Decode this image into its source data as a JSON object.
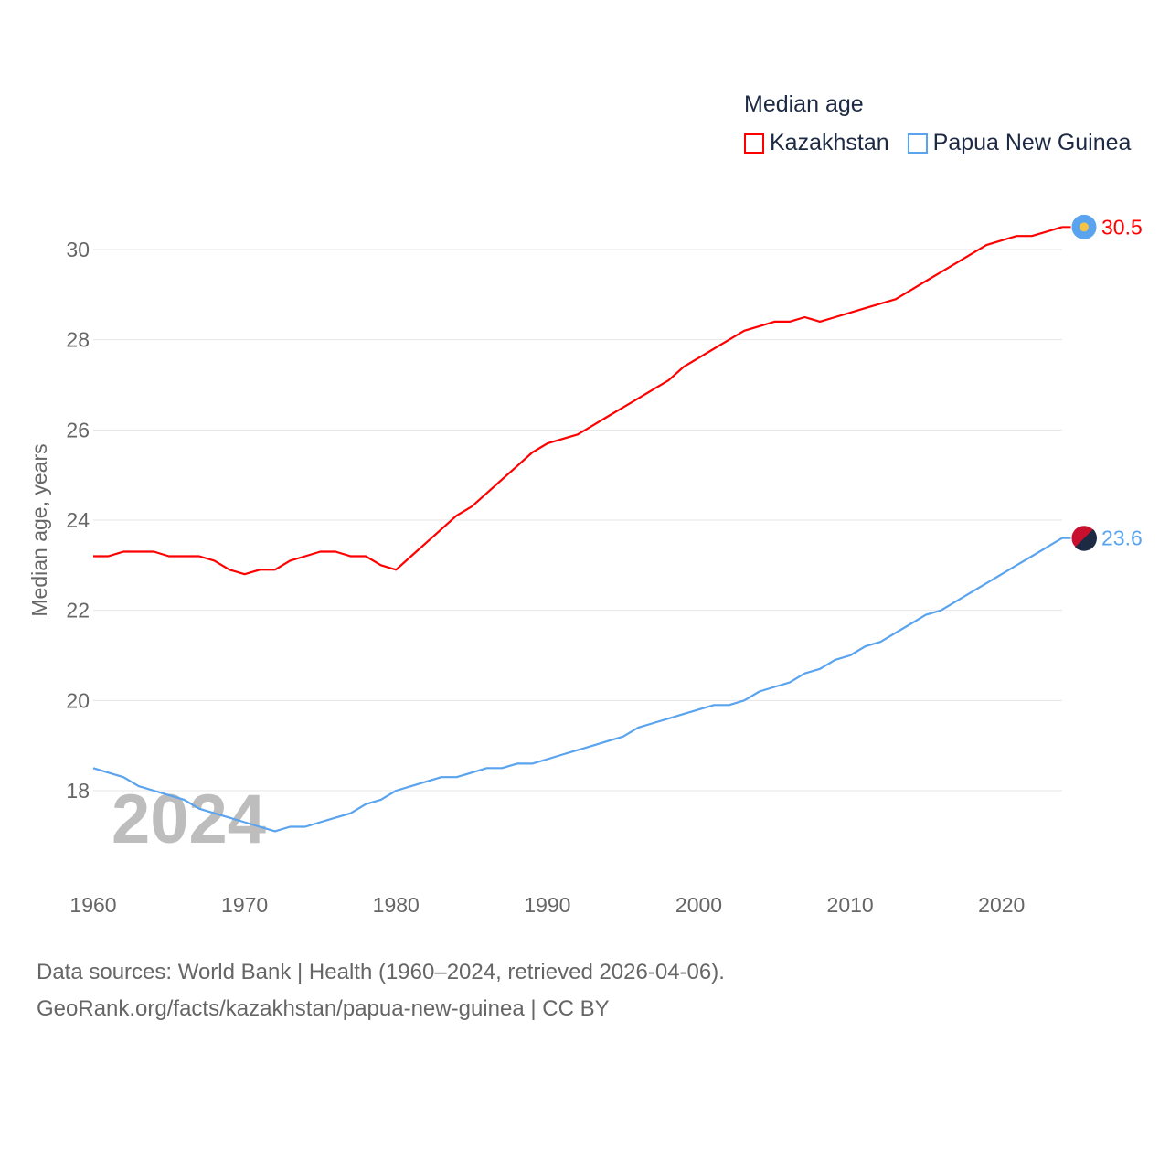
{
  "chart_data": {
    "type": "line",
    "title": "Median age",
    "ylabel": "Median age, years",
    "xlabel": "",
    "xlim": [
      1960,
      2024
    ],
    "ylim": [
      16.2,
      31.5
    ],
    "xticks": [
      1960,
      1970,
      1980,
      1990,
      2000,
      2010,
      2020
    ],
    "yticks": [
      18,
      20,
      22,
      24,
      26,
      28,
      30
    ],
    "grid": true,
    "legend_position": "top-right",
    "watermark_year": "2024",
    "x": [
      1960,
      1961,
      1962,
      1963,
      1964,
      1965,
      1966,
      1967,
      1968,
      1969,
      1970,
      1971,
      1972,
      1973,
      1974,
      1975,
      1976,
      1977,
      1978,
      1979,
      1980,
      1981,
      1982,
      1983,
      1984,
      1985,
      1986,
      1987,
      1988,
      1989,
      1990,
      1991,
      1992,
      1993,
      1994,
      1995,
      1996,
      1997,
      1998,
      1999,
      2000,
      2001,
      2002,
      2003,
      2004,
      2005,
      2006,
      2007,
      2008,
      2009,
      2010,
      2011,
      2012,
      2013,
      2014,
      2015,
      2016,
      2017,
      2018,
      2019,
      2020,
      2021,
      2022,
      2023,
      2024
    ],
    "series": [
      {
        "name": "Kazakhstan",
        "color": "#ff0000",
        "end_label": "30.5",
        "values": [
          23.2,
          23.2,
          23.3,
          23.3,
          23.3,
          23.2,
          23.2,
          23.2,
          23.1,
          22.9,
          22.8,
          22.9,
          22.9,
          23.1,
          23.2,
          23.3,
          23.3,
          23.2,
          23.2,
          23.0,
          22.9,
          23.2,
          23.5,
          23.8,
          24.1,
          24.3,
          24.6,
          24.9,
          25.2,
          25.5,
          25.7,
          25.8,
          25.9,
          26.1,
          26.3,
          26.5,
          26.7,
          26.9,
          27.1,
          27.4,
          27.6,
          27.8,
          28.0,
          28.2,
          28.3,
          28.4,
          28.4,
          28.5,
          28.4,
          28.5,
          28.6,
          28.7,
          28.8,
          28.9,
          29.1,
          29.3,
          29.5,
          29.7,
          29.9,
          30.1,
          30.2,
          30.3,
          30.3,
          30.4,
          30.5
        ]
      },
      {
        "name": "Papua New Guinea",
        "color": "#5aa3ee",
        "end_label": "23.6",
        "values": [
          18.5,
          18.4,
          18.3,
          18.1,
          18.0,
          17.9,
          17.8,
          17.6,
          17.5,
          17.4,
          17.3,
          17.2,
          17.1,
          17.2,
          17.2,
          17.3,
          17.4,
          17.5,
          17.7,
          17.8,
          18.0,
          18.1,
          18.2,
          18.3,
          18.3,
          18.4,
          18.5,
          18.5,
          18.6,
          18.6,
          18.7,
          18.8,
          18.9,
          19.0,
          19.1,
          19.2,
          19.4,
          19.5,
          19.6,
          19.7,
          19.8,
          19.9,
          19.9,
          20.0,
          20.2,
          20.3,
          20.4,
          20.6,
          20.7,
          20.9,
          21.0,
          21.2,
          21.3,
          21.5,
          21.7,
          21.9,
          22.0,
          22.2,
          22.4,
          22.6,
          22.8,
          23.0,
          23.2,
          23.4,
          23.6
        ]
      }
    ]
  },
  "footer": {
    "line1": "Data sources: World Bank | Health (1960–2024, retrieved 2026-04-06).",
    "line2": "GeoRank.org/facts/kazakhstan/papua-new-guinea | CC BY"
  }
}
